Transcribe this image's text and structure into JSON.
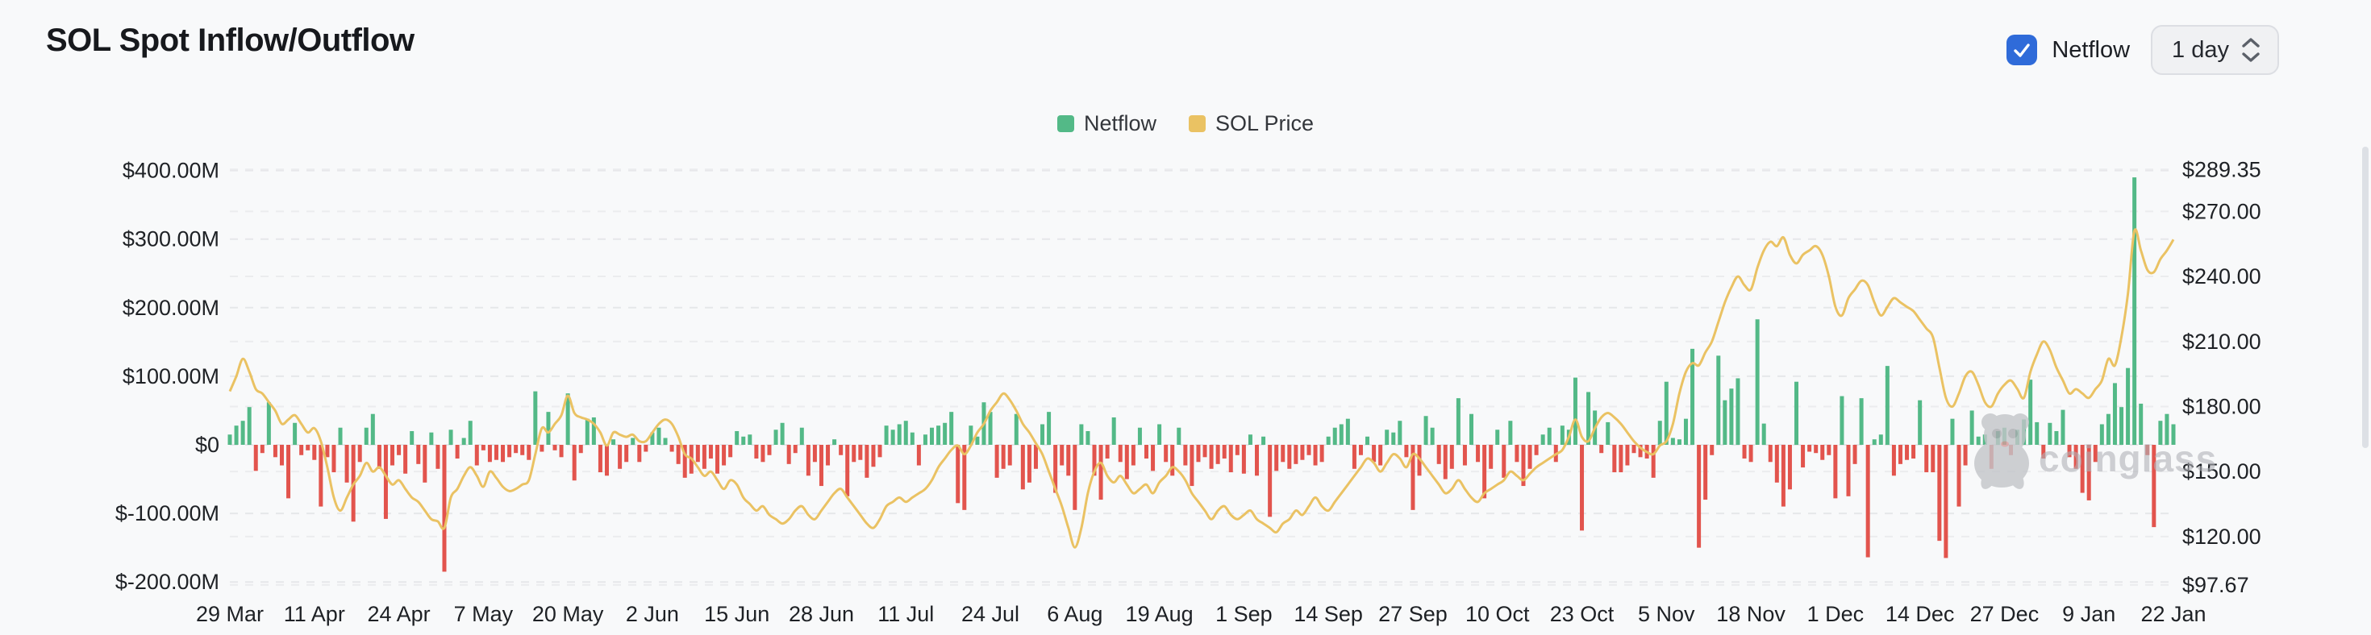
{
  "header": {
    "title": "SOL Spot Inflow/Outflow",
    "netflow_checkbox": {
      "label": "Netflow",
      "checked": true
    },
    "interval_selector": {
      "value": "1 day"
    }
  },
  "legend": [
    {
      "label": "Netflow",
      "color": "#53b987"
    },
    {
      "label": "SOL Price",
      "color": "#eac263"
    }
  ],
  "watermark": "coinglass",
  "chart_data": {
    "type": "mixed-bar-line",
    "title": "SOL Spot Inflow/Outflow",
    "grid": true,
    "x_start_label": "29 Mar",
    "x_end_label": "22 Jan",
    "x_tick_interval_days": 13,
    "x_tick_labels": [
      "29 Mar",
      "11 Apr",
      "24 Apr",
      "7 May",
      "20 May",
      "2 Jun",
      "15 Jun",
      "28 Jun",
      "11 Jul",
      "24 Jul",
      "6 Aug",
      "19 Aug",
      "1 Sep",
      "14 Sep",
      "27 Sep",
      "10 Oct",
      "23 Oct",
      "5 Nov",
      "18 Nov",
      "1 Dec",
      "14 Dec",
      "27 Dec",
      "9 Jan",
      "22 Jan"
    ],
    "left_axis": {
      "unit": "USD millions",
      "tick_labels": [
        "$400.00M",
        "$300.00M",
        "$200.00M",
        "$100.00M",
        "$0",
        "$-100.00M",
        "$-200.00M"
      ],
      "tick_values": [
        400,
        300,
        200,
        100,
        0,
        -100,
        -200
      ],
      "lim": [
        -220,
        410
      ]
    },
    "right_axis": {
      "unit": "USD",
      "tick_labels": [
        "$289.35",
        "$270.00",
        "$240.00",
        "$210.00",
        "$180.00",
        "$150.00",
        "$120.00",
        "$97.67"
      ],
      "tick_values": [
        289.35,
        270,
        240,
        210,
        180,
        150,
        120,
        97.67
      ],
      "lim": [
        97.67,
        289.35
      ]
    },
    "series": [
      {
        "name": "Netflow",
        "type": "bar",
        "axis": "left",
        "unit": "$M",
        "color_positive": "#53b987",
        "color_negative": "#e2544d",
        "values": [
          15,
          28,
          35,
          55,
          -38,
          -12,
          62,
          -18,
          -30,
          -78,
          32,
          -15,
          -8,
          -22,
          -90,
          -18,
          -40,
          25,
          -55,
          -112,
          -25,
          25,
          45,
          -35,
          -108,
          -30,
          -15,
          -42,
          20,
          -28,
          -55,
          18,
          -35,
          -185,
          22,
          -20,
          10,
          35,
          -30,
          -8,
          -25,
          -22,
          -25,
          -18,
          -12,
          -15,
          -22,
          78,
          -10,
          48,
          -8,
          -18,
          75,
          -52,
          -12,
          38,
          40,
          -40,
          -45,
          8,
          -35,
          -25,
          10,
          -25,
          -10,
          18,
          25,
          10,
          -10,
          -28,
          -48,
          -42,
          -25,
          -35,
          -20,
          -42,
          -30,
          -18,
          20,
          12,
          15,
          -20,
          -25,
          -15,
          22,
          32,
          -28,
          -12,
          25,
          -45,
          -25,
          -60,
          -30,
          8,
          -15,
          -75,
          -25,
          -22,
          -48,
          -32,
          -18,
          28,
          22,
          30,
          35,
          18,
          -30,
          15,
          25,
          28,
          32,
          48,
          -85,
          -95,
          28,
          12,
          62,
          48,
          -48,
          -35,
          -30,
          45,
          -65,
          -55,
          -35,
          30,
          48,
          -70,
          -30,
          -45,
          -95,
          30,
          20,
          -45,
          -80,
          -20,
          40,
          -25,
          -50,
          -30,
          25,
          -20,
          -38,
          30,
          -25,
          -45,
          25,
          -30,
          -60,
          -25,
          -18,
          -35,
          -28,
          -20,
          -40,
          -15,
          -42,
          15,
          -45,
          12,
          -105,
          -38,
          -25,
          -35,
          -28,
          -22,
          -15,
          -30,
          -25,
          12,
          25,
          30,
          38,
          -35,
          -15,
          12,
          -25,
          -30,
          22,
          18,
          35,
          -18,
          -95,
          -45,
          42,
          25,
          -28,
          -50,
          -35,
          68,
          -30,
          45,
          -25,
          -78,
          -35,
          22,
          -48,
          35,
          -25,
          -60,
          -35,
          -15,
          15,
          25,
          -25,
          28,
          22,
          98,
          -125,
          77,
          50,
          -12,
          33,
          -40,
          -40,
          -30,
          -12,
          -18,
          -20,
          -48,
          35,
          92,
          10,
          8,
          38,
          140,
          -150,
          -80,
          -15,
          130,
          65,
          82,
          97,
          -20,
          -25,
          183,
          31,
          -25,
          -55,
          -90,
          -65,
          92,
          -33,
          -10,
          -12,
          -22,
          -15,
          -78,
          71,
          -75,
          -28,
          68,
          -164,
          8,
          15,
          115,
          -45,
          -28,
          -22,
          -20,
          65,
          -40,
          -40,
          -140,
          -165,
          38,
          -90,
          -30,
          50,
          12,
          15,
          -35,
          20,
          25,
          -15,
          22,
          37,
          95,
          33,
          -20,
          32,
          20,
          51,
          -18,
          -35,
          -70,
          -81,
          -25,
          30,
          45,
          90,
          55,
          112,
          390,
          60,
          -15,
          -120,
          35,
          45,
          30
        ]
      },
      {
        "name": "SOL Price",
        "type": "line",
        "axis": "right",
        "unit": "$",
        "color": "#eac263",
        "values": [
          187,
          194,
          202,
          196,
          188,
          186,
          182,
          178,
          172,
          174,
          176,
          172,
          168,
          170,
          164,
          152,
          138,
          132,
          138,
          144,
          148,
          154,
          150,
          152,
          148,
          144,
          146,
          142,
          138,
          136,
          132,
          128,
          127,
          124,
          138,
          142,
          148,
          152,
          148,
          143,
          150,
          147,
          143,
          141,
          142,
          144,
          146,
          158,
          170,
          168,
          172,
          176,
          185,
          177,
          175,
          174,
          172,
          168,
          162,
          168,
          167,
          166,
          167,
          164,
          164,
          168,
          172,
          174,
          172,
          166,
          158,
          156,
          152,
          148,
          150,
          146,
          142,
          146,
          144,
          138,
          135,
          132,
          134,
          130,
          128,
          126,
          128,
          132,
          134,
          130,
          128,
          132,
          136,
          140,
          142,
          138,
          134,
          130,
          126,
          124,
          128,
          134,
          136,
          138,
          136,
          138,
          140,
          142,
          146,
          152,
          156,
          160,
          162,
          158,
          162,
          168,
          172,
          178,
          182,
          186,
          183,
          178,
          172,
          168,
          163,
          158,
          150,
          142,
          134,
          124,
          115,
          124,
          140,
          150,
          154,
          148,
          145,
          148,
          144,
          140,
          142,
          144,
          140,
          145,
          148,
          152,
          150,
          146,
          140,
          136,
          132,
          128,
          132,
          134,
          130,
          128,
          130,
          132,
          128,
          126,
          124,
          122,
          126,
          128,
          132,
          130,
          134,
          138,
          134,
          132,
          136,
          140,
          144,
          148,
          152,
          156,
          154,
          150,
          154,
          158,
          156,
          152,
          158,
          156,
          152,
          148,
          144,
          140,
          142,
          146,
          142,
          138,
          136,
          140,
          142,
          144,
          146,
          150,
          148,
          146,
          149,
          152,
          154,
          156,
          158,
          160,
          166,
          174,
          166,
          164,
          170,
          175,
          177,
          175,
          172,
          168,
          164,
          161,
          159,
          158,
          162,
          164,
          172,
          186,
          196,
          200,
          199,
          205,
          210,
          219,
          228,
          235,
          240,
          236,
          234,
          244,
          252,
          256,
          254,
          258,
          250,
          246,
          250,
          252,
          254,
          250,
          240,
          226,
          222,
          230,
          234,
          238,
          236,
          228,
          222,
          226,
          230,
          228,
          226,
          224,
          220,
          216,
          212,
          198,
          184,
          180,
          186,
          194,
          196,
          190,
          182,
          180,
          186,
          190,
          192,
          188,
          184,
          196,
          204,
          210,
          206,
          198,
          192,
          186,
          188,
          186,
          184,
          188,
          192,
          202,
          199,
          212,
          232,
          261,
          252,
          243,
          242,
          248,
          252,
          257
        ]
      }
    ]
  }
}
